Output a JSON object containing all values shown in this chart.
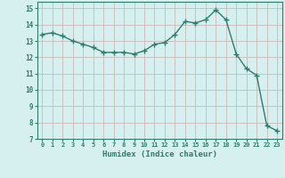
{
  "x": [
    0,
    1,
    2,
    3,
    4,
    5,
    6,
    7,
    8,
    9,
    10,
    11,
    12,
    13,
    14,
    15,
    16,
    17,
    18,
    19,
    20,
    21,
    22,
    23
  ],
  "y": [
    13.4,
    13.5,
    13.3,
    13.0,
    12.8,
    12.6,
    12.3,
    12.3,
    12.3,
    12.2,
    12.4,
    12.8,
    12.9,
    13.4,
    14.2,
    14.1,
    14.3,
    14.9,
    14.3,
    12.2,
    11.3,
    10.9,
    7.8,
    7.5
  ],
  "line_color": "#2e7d6e",
  "marker": "+",
  "marker_size": 4,
  "line_width": 1.0,
  "xlabel": "Humidex (Indice chaleur)",
  "xlim": [
    -0.5,
    23.5
  ],
  "ylim": [
    7,
    15.4
  ],
  "yticks": [
    7,
    8,
    9,
    10,
    11,
    12,
    13,
    14,
    15
  ],
  "xtick_labels": [
    "0",
    "1",
    "2",
    "3",
    "4",
    "5",
    "6",
    "7",
    "8",
    "9",
    "10",
    "11",
    "12",
    "13",
    "14",
    "15",
    "16",
    "17",
    "18",
    "19",
    "20",
    "21",
    "22",
    "23"
  ],
  "bg_color": "#d5f0ee",
  "grid_color_h": "#c9b8b8",
  "grid_color_v": "#c9b8b8",
  "tick_color": "#2e7d6e",
  "xlabel_color": "#2e7d6e",
  "spine_color": "#2e7d6e"
}
